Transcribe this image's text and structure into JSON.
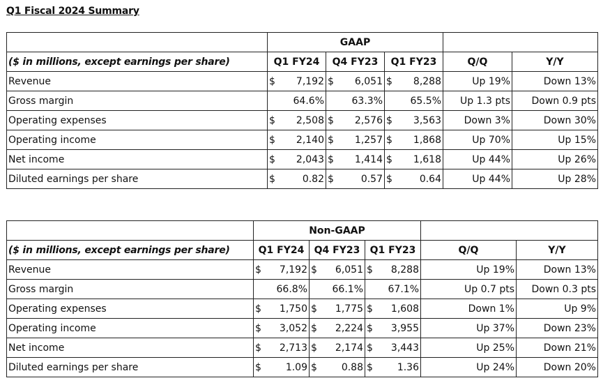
{
  "title": "Q1 Fiscal 2024 Summary",
  "gaap": {
    "section_title": "GAAP",
    "header_label": "($ in millions, except earnings per share)",
    "columns": [
      "Q1 FY24",
      "Q4 FY23",
      "Q1 FY23",
      "Q/Q",
      "Y/Y"
    ],
    "rows": [
      {
        "label": "Revenue",
        "vals": [
          "7,192",
          "6,051",
          "8,288"
        ],
        "qq": "Up 19%",
        "yy": "Down 13%"
      },
      {
        "label": "Gross margin",
        "vals": [
          "64.6%",
          "63.3%",
          "65.5%"
        ],
        "qq": "Up 1.3 pts",
        "yy": "Down 0.9 pts"
      },
      {
        "label": "Operating expenses",
        "vals": [
          "2,508",
          "2,576",
          "3,563"
        ],
        "qq": "Down 3%",
        "yy": "Down 30%"
      },
      {
        "label": "Operating income",
        "vals": [
          "2,140",
          "1,257",
          "1,868"
        ],
        "qq": "Up 70%",
        "yy": "Up 15%"
      },
      {
        "label": "Net income",
        "vals": [
          "2,043",
          "1,414",
          "1,618"
        ],
        "qq": "Up 44%",
        "yy": "Up 26%"
      },
      {
        "label": "Diluted earnings per share",
        "vals": [
          "0.82",
          "0.57",
          "0.64"
        ],
        "qq": "Up 44%",
        "yy": "Up 28%"
      }
    ]
  },
  "nongaap": {
    "section_title": "Non-GAAP",
    "header_label": "($ in millions, except earnings per share)",
    "columns": [
      "Q1 FY24",
      "Q4 FY23",
      "Q1 FY23",
      "Q/Q",
      "Y/Y"
    ],
    "rows": [
      {
        "label": "Revenue",
        "vals": [
          "7,192",
          "6,051",
          "8,288"
        ],
        "qq": "Up 19%",
        "yy": "Down 13%"
      },
      {
        "label": "Gross margin",
        "vals": [
          "66.8%",
          "66.1%",
          "67.1%"
        ],
        "qq": "Up 0.7 pts",
        "yy": "Down 0.3 pts"
      },
      {
        "label": "Operating expenses",
        "vals": [
          "1,750",
          "1,775",
          "1,608"
        ],
        "qq": "Down 1%",
        "yy": "Up 9%"
      },
      {
        "label": "Operating income",
        "vals": [
          "3,052",
          "2,224",
          "3,955"
        ],
        "qq": "Up 37%",
        "yy": "Down 23%"
      },
      {
        "label": "Net income",
        "vals": [
          "2,713",
          "2,174",
          "3,443"
        ],
        "qq": "Up 25%",
        "yy": "Down 21%"
      },
      {
        "label": "Diluted earnings per share",
        "vals": [
          "1.09",
          "0.88",
          "1.36"
        ],
        "qq": "Up 24%",
        "yy": "Down 20%"
      }
    ]
  },
  "currency_symbol": "$"
}
